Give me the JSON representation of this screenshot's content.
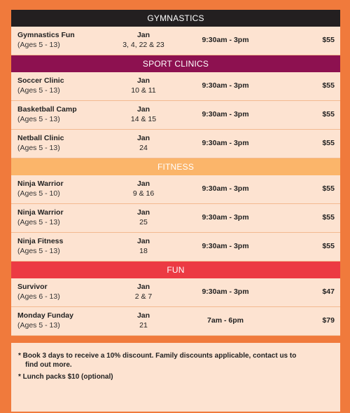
{
  "colors": {
    "gymnastics": "#231f20",
    "sport_clinics": "#8d1150",
    "fitness": "#fbb56a",
    "fun": "#ec3a43",
    "row_bg": "#fde3d1"
  },
  "sections": [
    {
      "title": "GYMNASTICS",
      "rows": [
        {
          "name": "Gymnastics Fun",
          "ages": "(Ages 5 - 13)",
          "month": "Jan",
          "days": "3, 4, 22 & 23",
          "time": "9:30am - 3pm",
          "price": "$55"
        }
      ]
    },
    {
      "title": "SPORT CLINICS",
      "rows": [
        {
          "name": "Soccer Clinic",
          "ages": "(Ages 5 - 13)",
          "month": "Jan",
          "days": "10 & 11",
          "time": "9:30am - 3pm",
          "price": "$55"
        },
        {
          "name": "Basketball Camp",
          "ages": "(Ages 5 - 13)",
          "month": "Jan",
          "days": "14 & 15",
          "time": "9:30am - 3pm",
          "price": "$55"
        },
        {
          "name": "Netball Clinic",
          "ages": "(Ages 5 - 13)",
          "month": "Jan",
          "days": "24",
          "time": "9:30am - 3pm",
          "price": "$55"
        }
      ]
    },
    {
      "title": "FITNESS",
      "rows": [
        {
          "name": "Ninja Warrior",
          "ages": "(Ages 5 - 10)",
          "month": "Jan",
          "days": "9 & 16",
          "time": "9:30am - 3pm",
          "price": "$55"
        },
        {
          "name": "Ninja Warrior",
          "ages": "(Ages 5 - 13)",
          "month": "Jan",
          "days": "25",
          "time": "9:30am - 3pm",
          "price": "$55"
        },
        {
          "name": "Ninja Fitness",
          "ages": "(Ages 5 - 13)",
          "month": "Jan",
          "days": "18",
          "time": "9:30am - 3pm",
          "price": "$55"
        }
      ]
    },
    {
      "title": "FUN",
      "rows": [
        {
          "name": "Survivor",
          "ages": "(Ages 6 - 13)",
          "month": "Jan",
          "days": "2 & 7",
          "time": "9:30am - 3pm",
          "price": "$47"
        },
        {
          "name": "Monday Funday",
          "ages": "(Ages 5 - 13)",
          "month": "Jan",
          "days": "21",
          "time": "7am - 6pm",
          "price": "$79"
        }
      ]
    }
  ],
  "notes": {
    "note1_line1": "* Book 3 days to receive a 10% discount. Family discounts applicable, contact us to",
    "note1_line2": "find out more.",
    "note2": "* Lunch packs $10 (optional)"
  }
}
